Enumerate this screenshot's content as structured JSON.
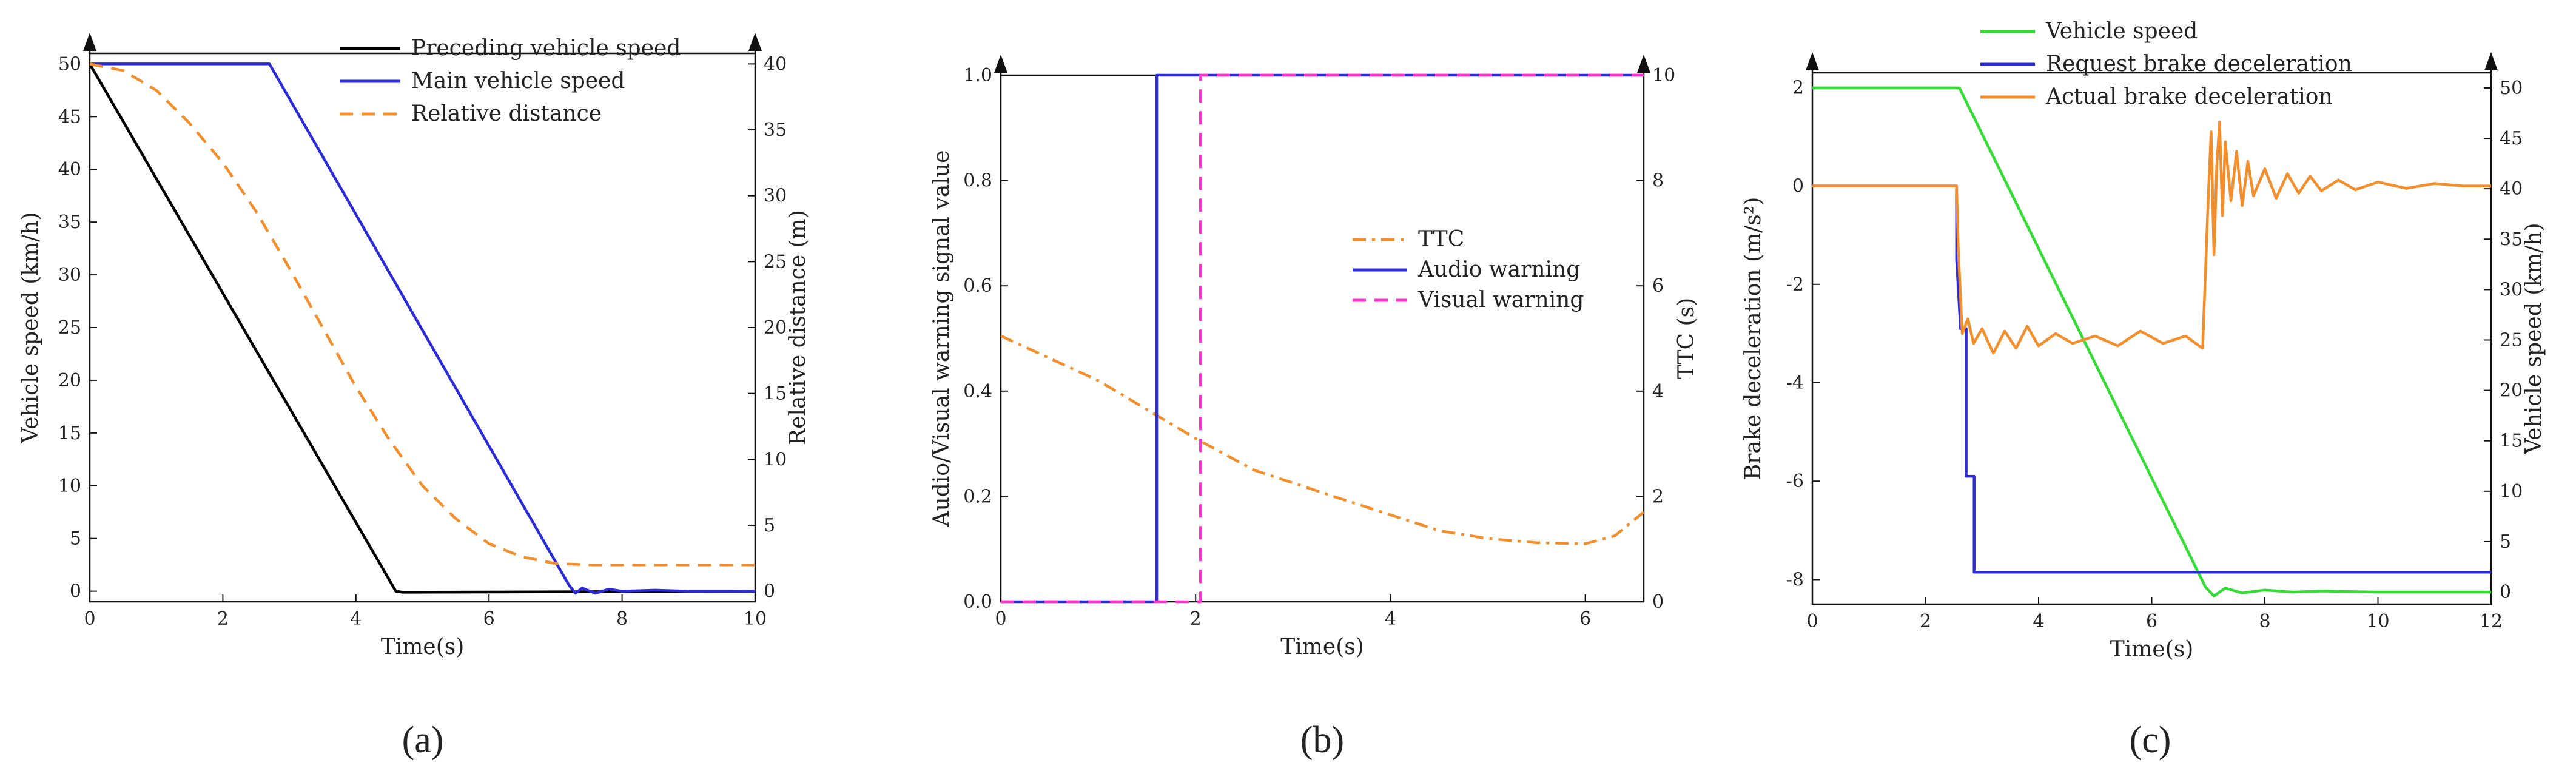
{
  "chart_data": [
    {
      "type": "line",
      "panel_label": "a",
      "xlabel": "Time(s)",
      "ylabel_left": "Vehicle speed (km/h)",
      "ylabel_right": "Relative distance (m)",
      "xlim": [
        0,
        10
      ],
      "ylim_left": [
        -1,
        51
      ],
      "ylim_right": [
        -0.8,
        40.8
      ],
      "x_ticks": [
        0,
        2,
        4,
        6,
        8,
        10
      ],
      "y_ticks_left": [
        0,
        5,
        10,
        15,
        20,
        25,
        30,
        35,
        40,
        45,
        50
      ],
      "y_ticks_right": [
        0,
        5,
        10,
        15,
        20,
        25,
        30,
        35,
        40
      ],
      "grid": false,
      "legend_position": "top-right",
      "series": [
        {
          "name": "Preceding vehicle speed",
          "axis": "left",
          "color": "#000000",
          "dash": "solid",
          "x": [
            0,
            4.6,
            4.7,
            10
          ],
          "y": [
            50,
            0,
            -0.1,
            0
          ]
        },
        {
          "name": "Main vehicle speed",
          "axis": "left",
          "color": "#2b2bd8",
          "dash": "solid",
          "x": [
            0,
            2.7,
            7.2,
            7.3,
            7.4,
            7.6,
            7.8,
            8.0,
            8.5,
            9.0,
            10
          ],
          "y": [
            50,
            50,
            0.6,
            -0.2,
            0.3,
            -0.2,
            0.2,
            0.0,
            0.1,
            0.0,
            0.0
          ]
        },
        {
          "name": "Relative distance",
          "axis": "right",
          "color": "#f28e2b",
          "dash": "dashed",
          "x": [
            0,
            0.5,
            1.0,
            1.5,
            2.0,
            2.5,
            3.0,
            3.5,
            4.0,
            4.5,
            5.0,
            5.5,
            6.0,
            6.5,
            7.0,
            7.5,
            8.0,
            9.0,
            10
          ],
          "y": [
            40,
            39.5,
            38.0,
            35.5,
            32.5,
            28.8,
            24.5,
            20.0,
            15.5,
            11.5,
            8.0,
            5.5,
            3.6,
            2.6,
            2.1,
            2.0,
            2.0,
            2.0,
            2.0
          ]
        }
      ]
    },
    {
      "type": "line",
      "panel_label": "b",
      "xlabel": "Time(s)",
      "ylabel_left": "Audio/Visual warning signal value",
      "ylabel_right": "TTC (s)",
      "xlim": [
        0,
        6.6
      ],
      "ylim_left": [
        0,
        1.0
      ],
      "ylim_right": [
        0,
        10
      ],
      "x_ticks": [
        0,
        2,
        4,
        6
      ],
      "y_ticks_left": [
        0.0,
        0.2,
        0.4,
        0.6,
        0.8,
        1.0
      ],
      "y_ticks_right": [
        0,
        2,
        4,
        6,
        8,
        10
      ],
      "grid": false,
      "legend_position": "top-right",
      "series": [
        {
          "name": "TTC",
          "axis": "right",
          "color": "#f28e2b",
          "dash": "dashdot",
          "x": [
            0,
            1.0,
            2.0,
            2.6,
            3.5,
            4.5,
            5.0,
            5.5,
            6.0,
            6.3,
            6.6
          ],
          "y": [
            5.05,
            4.2,
            3.1,
            2.5,
            1.95,
            1.35,
            1.2,
            1.12,
            1.1,
            1.25,
            1.7
          ]
        },
        {
          "name": "Audio warning",
          "axis": "left",
          "color": "#2b2bd8",
          "dash": "solid",
          "x": [
            0,
            1.6,
            1.6,
            6.6
          ],
          "y": [
            0,
            0,
            1,
            1
          ]
        },
        {
          "name": "Visual warning",
          "axis": "left",
          "color": "#ff33cc",
          "dash": "dashed",
          "x": [
            0,
            2.05,
            2.05,
            6.6
          ],
          "y": [
            0,
            0,
            1,
            1
          ]
        }
      ]
    },
    {
      "type": "line",
      "panel_label": "c",
      "xlabel": "Time(s)",
      "ylabel_left": "Brake deceleration (m/s²)",
      "ylabel_right": "Vehicle speed (km/h)",
      "xlim": [
        0,
        12
      ],
      "ylim_left": [
        -8.5,
        2.3
      ],
      "ylim_right": [
        -1.2,
        51.5
      ],
      "x_ticks": [
        0,
        2,
        4,
        6,
        8,
        10,
        12
      ],
      "y_ticks_left": [
        -8,
        -6,
        -4,
        -2,
        0,
        2
      ],
      "y_ticks_right": [
        0,
        5,
        10,
        15,
        20,
        25,
        30,
        35,
        40,
        45,
        50
      ],
      "grid": false,
      "legend_position": "top-right",
      "series": [
        {
          "name": "Vehicle speed",
          "axis": "right",
          "color": "#33dd33",
          "dash": "solid",
          "x": [
            0,
            2.6,
            6.95,
            7.1,
            7.3,
            7.6,
            8.0,
            8.5,
            9.0,
            10.0,
            11.0,
            12.0
          ],
          "y": [
            50,
            50,
            0.5,
            -0.4,
            0.4,
            -0.1,
            0.2,
            0.0,
            0.1,
            0.0,
            0.0,
            0.0
          ]
        },
        {
          "name": "Request brake deceleration",
          "axis": "left",
          "color": "#2b2bd8",
          "dash": "solid",
          "x": [
            0,
            2.55,
            2.55,
            2.62,
            2.62,
            2.72,
            2.72,
            2.86,
            2.86,
            12
          ],
          "y": [
            0,
            0,
            -1.5,
            -2.9,
            -2.9,
            -2.9,
            -5.9,
            -5.9,
            -7.85,
            -7.85
          ]
        },
        {
          "name": "Actual brake deceleration",
          "axis": "left",
          "color": "#f28e2b",
          "dash": "solid",
          "x": [
            0,
            2.55,
            2.58,
            2.65,
            2.75,
            2.85,
            3.0,
            3.2,
            3.4,
            3.6,
            3.8,
            4.0,
            4.3,
            4.6,
            5.0,
            5.4,
            5.8,
            6.2,
            6.6,
            6.9,
            7.0,
            7.05,
            7.1,
            7.15,
            7.2,
            7.25,
            7.3,
            7.4,
            7.5,
            7.6,
            7.7,
            7.8,
            8.0,
            8.2,
            8.4,
            8.6,
            8.8,
            9.0,
            9.3,
            9.6,
            10.0,
            10.5,
            11.0,
            11.5,
            12.0
          ],
          "y": [
            0,
            0,
            -1.3,
            -3.0,
            -2.7,
            -3.2,
            -2.9,
            -3.4,
            -2.95,
            -3.3,
            -2.85,
            -3.25,
            -3.0,
            -3.2,
            -3.05,
            -3.25,
            -2.95,
            -3.2,
            -3.05,
            -3.3,
            -0.2,
            1.1,
            -1.4,
            0.4,
            1.3,
            -0.6,
            0.9,
            -0.3,
            0.7,
            -0.4,
            0.5,
            -0.2,
            0.35,
            -0.25,
            0.25,
            -0.15,
            0.2,
            -0.1,
            0.12,
            -0.08,
            0.08,
            -0.05,
            0.05,
            0.0,
            0.0
          ]
        }
      ]
    }
  ],
  "captions": [
    "(a)",
    "(b)",
    "(c)"
  ]
}
